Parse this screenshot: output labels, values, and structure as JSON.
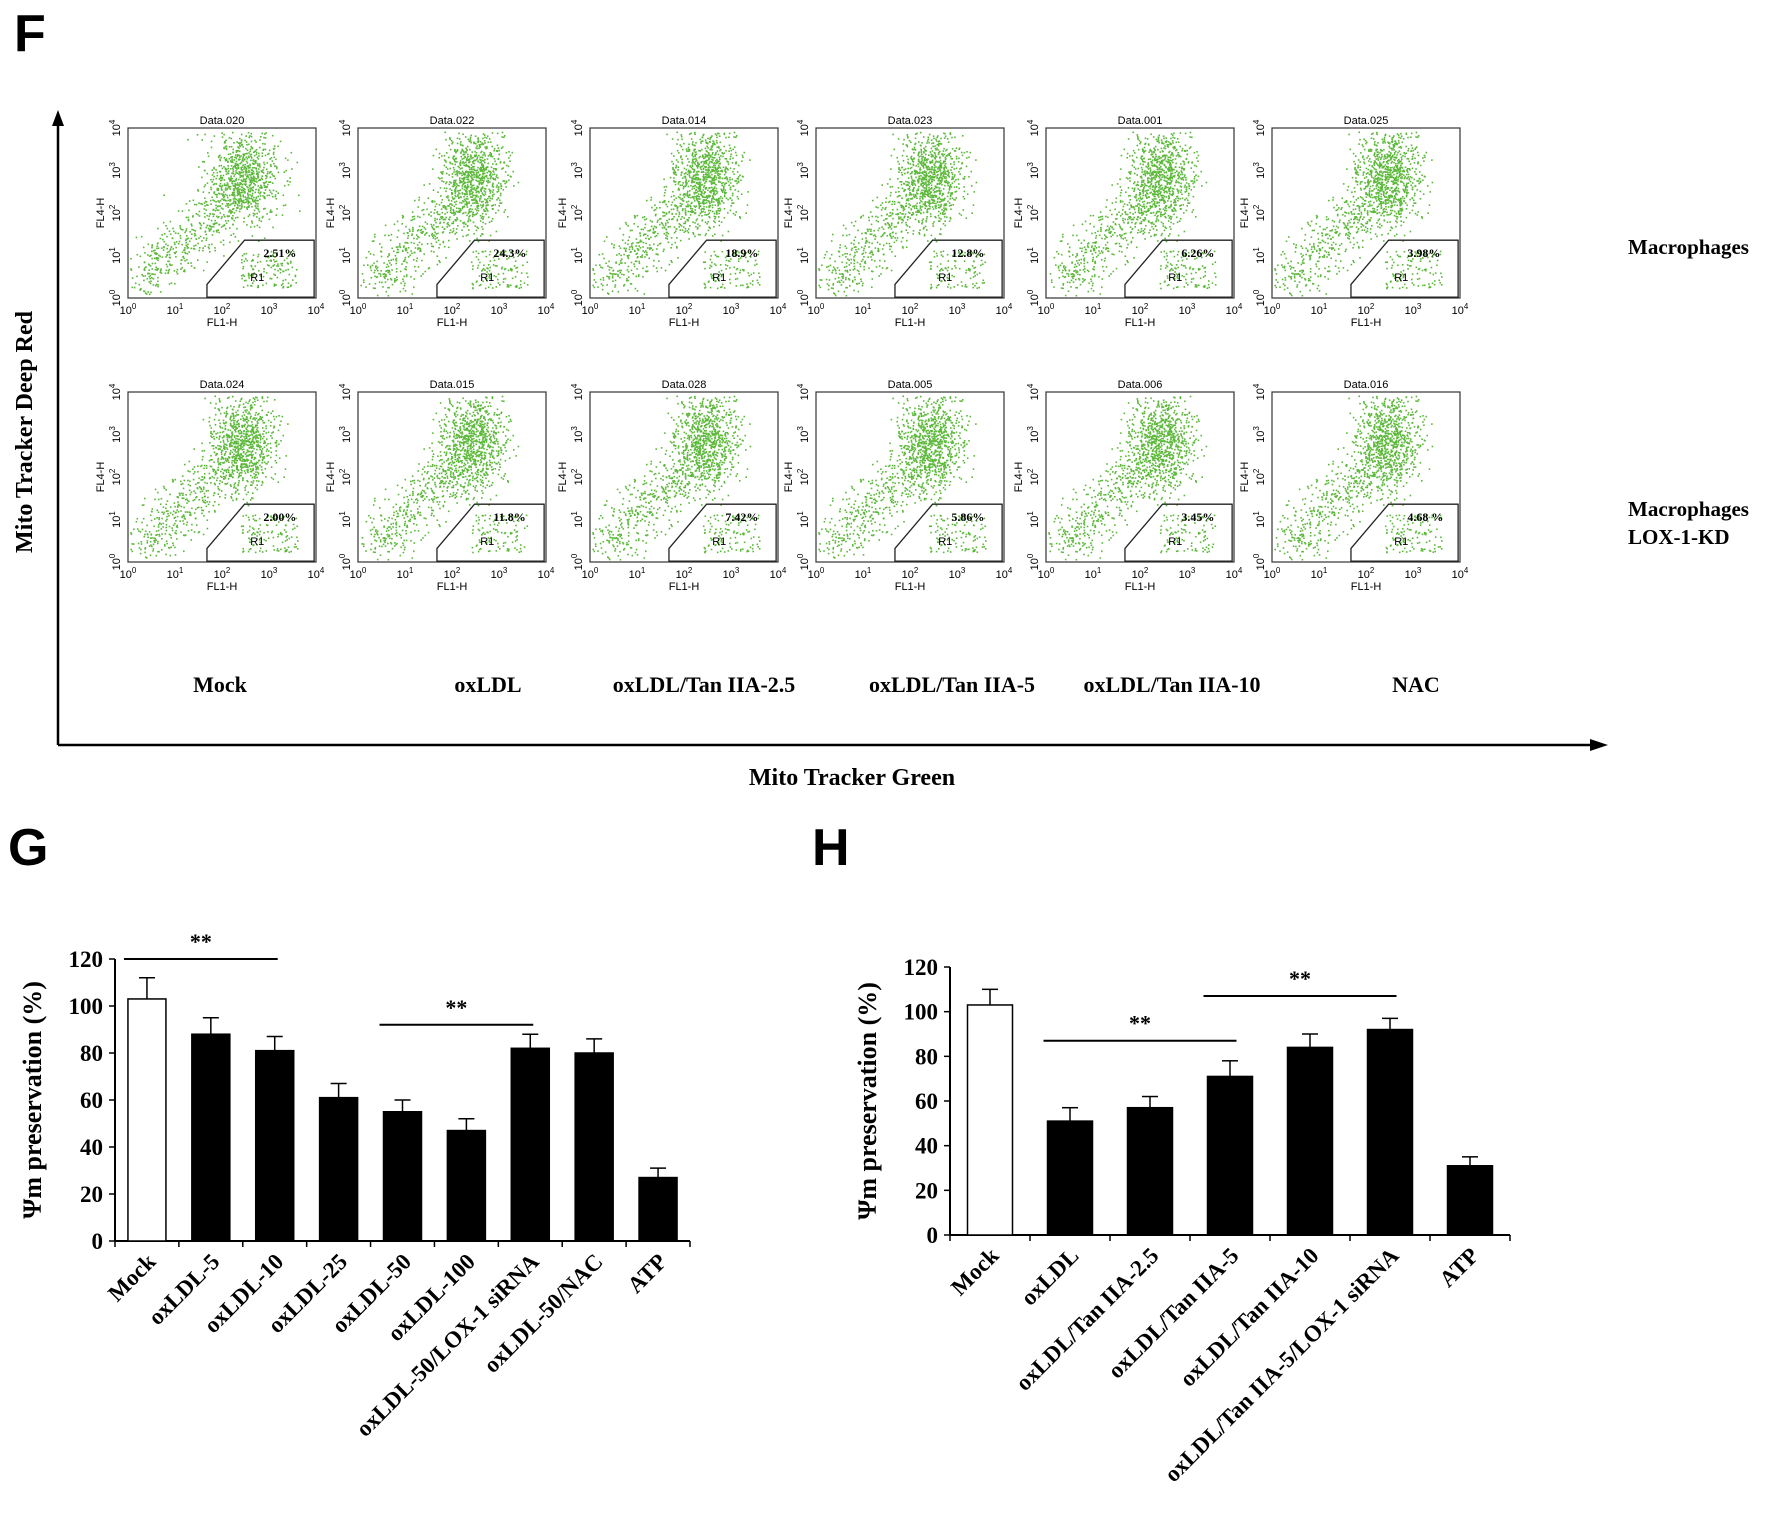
{
  "panels": {
    "f": "F",
    "g": "G",
    "h": "H"
  },
  "colors": {
    "dots": "#5cb83a",
    "bar_filled": "#000000",
    "bar_open": "#ffffff",
    "axis": "#000000"
  },
  "flow": {
    "y_axis_title": "Mito Tracker Deep Red",
    "x_axis_title": "Mito Tracker Green",
    "axis_label_x": "FL1-H",
    "axis_label_y": "FL4-H",
    "gate_label": "R1",
    "tick_base": "10",
    "tick_exponents": [
      "0",
      "1",
      "2",
      "3",
      "4"
    ],
    "row_labels": [
      [
        "Macrophages"
      ],
      [
        "Macrophages",
        "LOX-1-KD"
      ]
    ],
    "column_labels": [
      "Mock",
      "oxLDL",
      "oxLDL/Tan IIA-2.5",
      "oxLDL/Tan IIA-5",
      "oxLDL/Tan IIA-10",
      "NAC"
    ],
    "plots": [
      {
        "title": "Data.020",
        "gate_percent": "2.51%",
        "row": 0,
        "col": 0
      },
      {
        "title": "Data.022",
        "gate_percent": "24.3%",
        "row": 0,
        "col": 1
      },
      {
        "title": "Data.014",
        "gate_percent": "18.9%",
        "row": 0,
        "col": 2
      },
      {
        "title": "Data.023",
        "gate_percent": "12.8%",
        "row": 0,
        "col": 3
      },
      {
        "title": "Data.001",
        "gate_percent": "6.26%",
        "row": 0,
        "col": 4
      },
      {
        "title": "Data.025",
        "gate_percent": "3.98%",
        "row": 0,
        "col": 5
      },
      {
        "title": "Data.024",
        "gate_percent": "2.00%",
        "row": 1,
        "col": 0
      },
      {
        "title": "Data.015",
        "gate_percent": "11.8%",
        "row": 1,
        "col": 1
      },
      {
        "title": "Data.028",
        "gate_percent": "7.42%",
        "row": 1,
        "col": 2
      },
      {
        "title": "Data.005",
        "gate_percent": "5.86%",
        "row": 1,
        "col": 3
      },
      {
        "title": "Data.006",
        "gate_percent": "3.45%",
        "row": 1,
        "col": 4
      },
      {
        "title": "Data.016",
        "gate_percent": "4.68 %",
        "row": 1,
        "col": 5
      }
    ]
  },
  "chart_data": [
    {
      "type": "bar",
      "panel": "G",
      "ylabel": "Ψm preservation (%)",
      "xlabel": "",
      "ylim": [
        0,
        120
      ],
      "yticks": [
        0,
        20,
        40,
        60,
        80,
        100,
        120
      ],
      "categories": [
        "Mock",
        "oxLDL-5",
        "oxLDL-10",
        "oxLDL-25",
        "oxLDL-50",
        "oxLDL-100",
        "oxLDL-50/LOX-1 siRNA",
        "oxLDL-50/NAC",
        "ATP"
      ],
      "values": [
        103,
        88,
        81,
        61,
        55,
        47,
        82,
        80,
        27
      ],
      "errors": [
        9,
        7,
        6,
        6,
        5,
        5,
        6,
        6,
        4
      ],
      "open_bars": [
        0
      ],
      "significance": [
        {
          "from": 0,
          "to": 2,
          "label": "**",
          "y": 120
        },
        {
          "from": 4,
          "to": 6,
          "label": "**",
          "y": 92
        }
      ]
    },
    {
      "type": "bar",
      "panel": "H",
      "ylabel": "Ψm preservation (%)",
      "xlabel": "",
      "ylim": [
        0,
        120
      ],
      "yticks": [
        0,
        20,
        40,
        60,
        80,
        100,
        120
      ],
      "categories": [
        "Mock",
        "oxLDL",
        "oxLDL/Tan IIA-2.5",
        "oxLDL/Tan IIA-5",
        "oxLDL/Tan IIA-10",
        "oxLDL/Tan IIA-5/LOX-1 siRNA",
        "ATP"
      ],
      "values": [
        103,
        51,
        57,
        71,
        84,
        92,
        31
      ],
      "errors": [
        7,
        6,
        5,
        7,
        6,
        5,
        4
      ],
      "open_bars": [
        0
      ],
      "significance": [
        {
          "from": 1,
          "to": 3,
          "label": "**",
          "y": 87
        },
        {
          "from": 3,
          "to": 5,
          "label": "**",
          "y": 107
        }
      ]
    }
  ]
}
